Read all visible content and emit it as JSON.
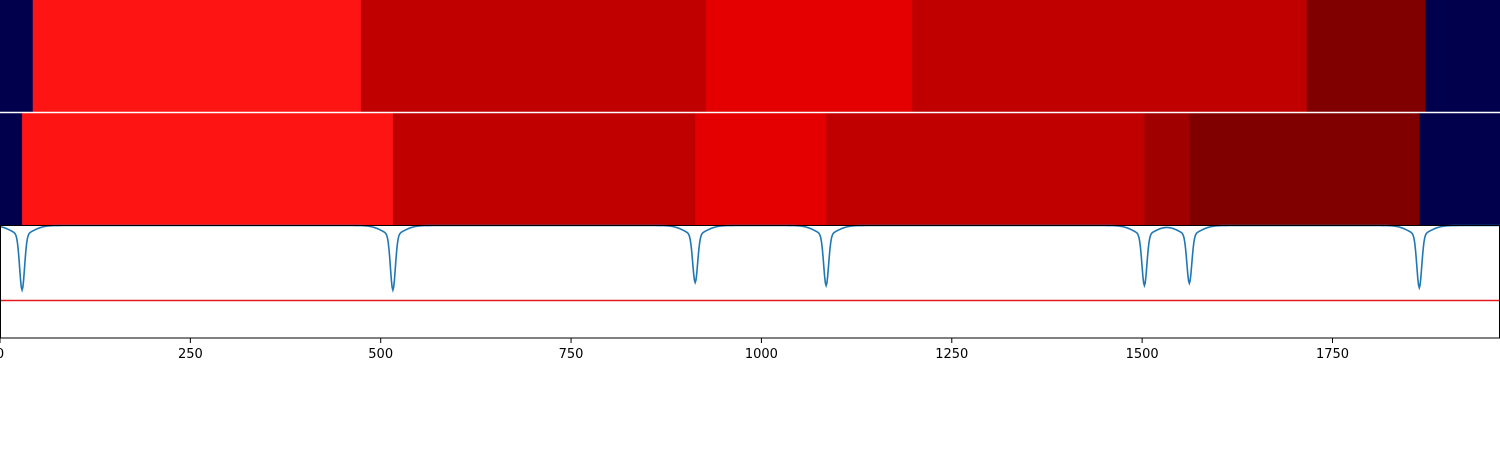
{
  "chart_data": [
    {
      "type": "heatmap",
      "panel": "top-segmentation",
      "xlim": [
        0,
        1970
      ],
      "segments": [
        {
          "start": 0,
          "end": 43,
          "color": "#00004c"
        },
        {
          "start": 43,
          "end": 474,
          "color": "#ff1414"
        },
        {
          "start": 474,
          "end": 927,
          "color": "#c00000"
        },
        {
          "start": 927,
          "end": 1198,
          "color": "#e40000"
        },
        {
          "start": 1198,
          "end": 1716,
          "color": "#c00000"
        },
        {
          "start": 1716,
          "end": 1872,
          "color": "#800000"
        },
        {
          "start": 1872,
          "end": 1970,
          "color": "#00004c"
        }
      ]
    },
    {
      "type": "heatmap",
      "panel": "bottom-segmentation",
      "xlim": [
        0,
        1970
      ],
      "segments": [
        {
          "start": 0,
          "end": 29,
          "color": "#00004c"
        },
        {
          "start": 29,
          "end": 516,
          "color": "#ff1414"
        },
        {
          "start": 516,
          "end": 913,
          "color": "#c00000"
        },
        {
          "start": 913,
          "end": 1085,
          "color": "#e40000"
        },
        {
          "start": 1085,
          "end": 1503,
          "color": "#c00000"
        },
        {
          "start": 1503,
          "end": 1562,
          "color": "#a00000"
        },
        {
          "start": 1562,
          "end": 1864,
          "color": "#800000"
        },
        {
          "start": 1864,
          "end": 1970,
          "color": "#00004c"
        }
      ]
    },
    {
      "type": "line",
      "panel": "boundary-score",
      "xlim": [
        0,
        1970
      ],
      "ylim": [
        -0.5,
        1.0
      ],
      "threshold": 0.0,
      "threshold_color": "#e41a1c",
      "line_color": "#1f77b4",
      "baseline": 1.0,
      "dips": [
        {
          "x": 29,
          "depth": 0.74
        },
        {
          "x": 516,
          "depth": 0.74
        },
        {
          "x": 913,
          "depth": 0.64
        },
        {
          "x": 1085,
          "depth": 0.68
        },
        {
          "x": 1503,
          "depth": 0.68
        },
        {
          "x": 1562,
          "depth": 0.65
        },
        {
          "x": 1864,
          "depth": 0.71
        }
      ],
      "xticks": [
        0,
        250,
        500,
        750,
        1000,
        1250,
        1500,
        1750
      ],
      "xtick_labels": [
        "0",
        "250",
        "500",
        "750",
        "1000",
        "1250",
        "1500",
        "1750"
      ]
    }
  ]
}
